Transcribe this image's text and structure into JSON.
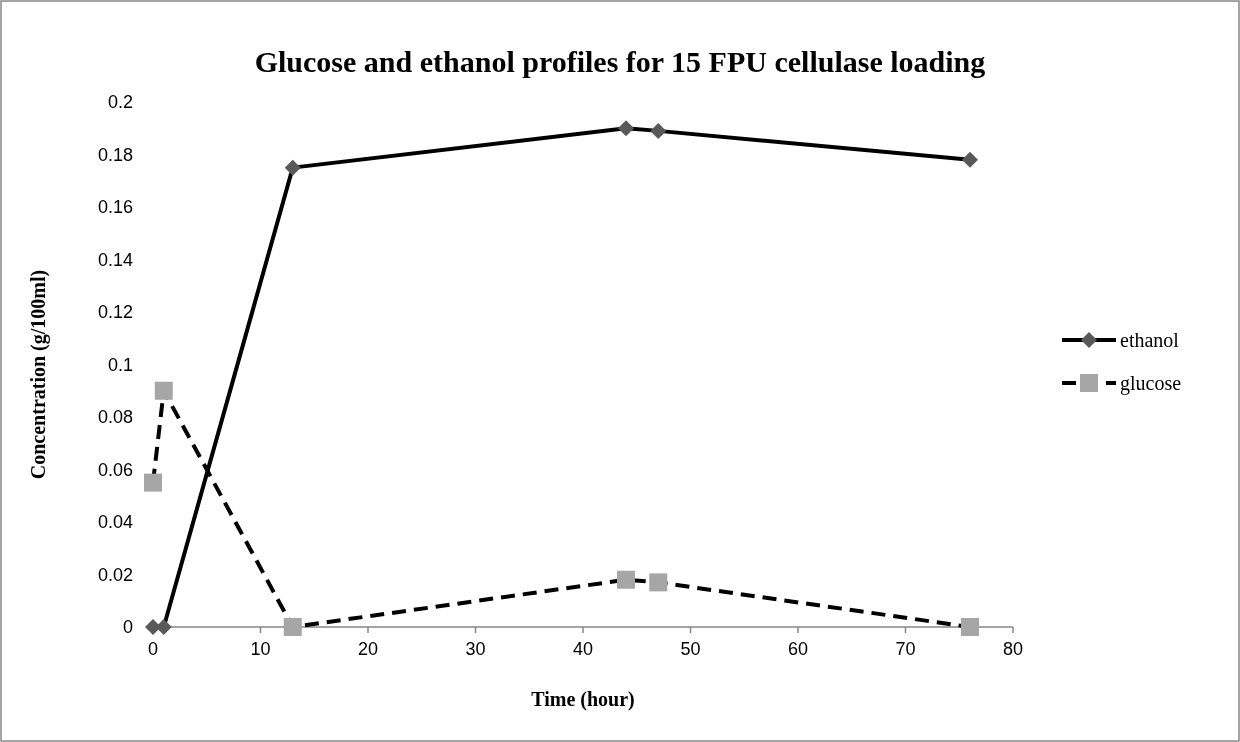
{
  "chart_data": {
    "type": "line",
    "title": "Glucose and ethanol profiles for 15 FPU cellulase loading",
    "xlabel": "Time (hour)",
    "ylabel": "Concentration (g/100ml)",
    "x": [
      0,
      1,
      13,
      44,
      47,
      76
    ],
    "series": [
      {
        "name": "ethanol",
        "color": "#595959",
        "values": [
          0,
          0,
          0.175,
          0.19,
          0.189,
          0.178
        ],
        "marker": "diamond",
        "line_style": "solid"
      },
      {
        "name": "glucose",
        "color": "#a6a6a6",
        "values": [
          0.055,
          0.09,
          0,
          0.018,
          0.017,
          0
        ],
        "marker": "square",
        "line_style": "dashed"
      }
    ],
    "xlim": [
      0,
      80
    ],
    "xticks": [
      0,
      10,
      20,
      30,
      40,
      50,
      60,
      70,
      80
    ],
    "ylim": [
      0,
      0.2
    ],
    "yticks": [
      0,
      0.02,
      0.04,
      0.06,
      0.08,
      0.1,
      0.12,
      0.14,
      0.16,
      0.18,
      0.2
    ],
    "grid": false,
    "legend": "right"
  }
}
